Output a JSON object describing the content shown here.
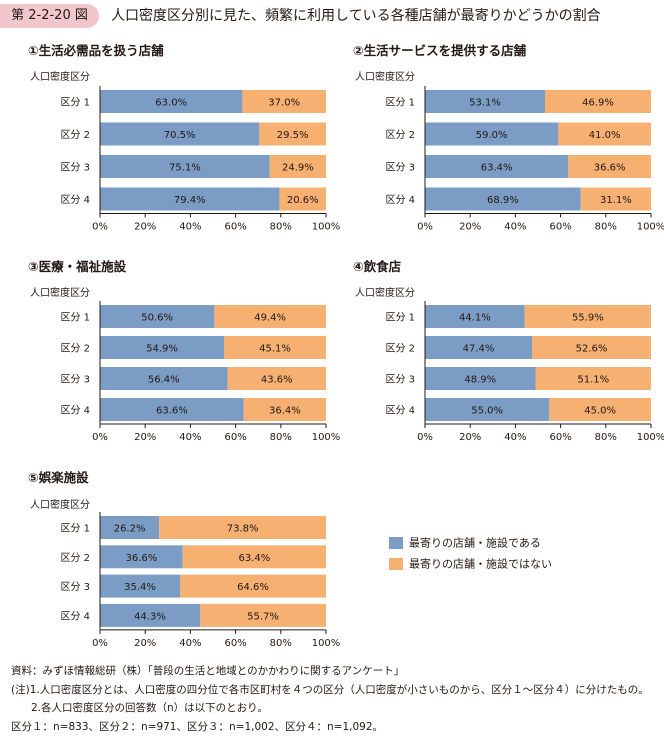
{
  "figure_number": "第 2-2-20 図",
  "title": "人口密度区分別に見た、頻繁に利用している各種店舗が最寄りかどうかの割合",
  "colors": {
    "near": "#7b9cc5",
    "not_near": "#f5b072",
    "axis": "#231815"
  },
  "legend": {
    "near": "最寄りの店舗・施設である",
    "not_near": "最寄りの店舗・施設ではない"
  },
  "chart_data": [
    {
      "type": "bar",
      "orientation": "horizontal",
      "stacked": true,
      "title": "①生活必需品を扱う店舗",
      "ylabel": "人口密度区分",
      "categories": [
        "区分 1",
        "区分 2",
        "区分 3",
        "区分 4"
      ],
      "series": [
        {
          "name": "最寄りの店舗・施設である",
          "values": [
            63.0,
            70.5,
            75.1,
            79.4
          ]
        },
        {
          "name": "最寄りの店舗・施設ではない",
          "values": [
            37.0,
            29.5,
            24.9,
            20.6
          ]
        }
      ],
      "xlim": [
        0,
        100
      ],
      "xticks": [
        "0%",
        "20%",
        "40%",
        "60%",
        "80%",
        "100%"
      ]
    },
    {
      "type": "bar",
      "orientation": "horizontal",
      "stacked": true,
      "title": "②生活サービスを提供する店舗",
      "ylabel": "人口密度区分",
      "categories": [
        "区分 1",
        "区分 2",
        "区分 3",
        "区分 4"
      ],
      "series": [
        {
          "name": "最寄りの店舗・施設である",
          "values": [
            53.1,
            59.0,
            63.4,
            68.9
          ]
        },
        {
          "name": "最寄りの店舗・施設ではない",
          "values": [
            46.9,
            41.0,
            36.6,
            31.1
          ]
        }
      ],
      "xlim": [
        0,
        100
      ],
      "xticks": [
        "0%",
        "20%",
        "40%",
        "60%",
        "80%",
        "100%"
      ]
    },
    {
      "type": "bar",
      "orientation": "horizontal",
      "stacked": true,
      "title": "③医療・福祉施設",
      "ylabel": "人口密度区分",
      "categories": [
        "区分 1",
        "区分 2",
        "区分 3",
        "区分 4"
      ],
      "series": [
        {
          "name": "最寄りの店舗・施設である",
          "values": [
            50.6,
            54.9,
            56.4,
            63.6
          ]
        },
        {
          "name": "最寄りの店舗・施設ではない",
          "values": [
            49.4,
            45.1,
            43.6,
            36.4
          ]
        }
      ],
      "xlim": [
        0,
        100
      ],
      "xticks": [
        "0%",
        "20%",
        "40%",
        "60%",
        "80%",
        "100%"
      ]
    },
    {
      "type": "bar",
      "orientation": "horizontal",
      "stacked": true,
      "title": "④飲食店",
      "ylabel": "人口密度区分",
      "categories": [
        "区分 1",
        "区分 2",
        "区分 3",
        "区分 4"
      ],
      "series": [
        {
          "name": "最寄りの店舗・施設である",
          "values": [
            44.1,
            47.4,
            48.9,
            55.0
          ]
        },
        {
          "name": "最寄りの店舗・施設ではない",
          "values": [
            55.9,
            52.6,
            51.1,
            45.0
          ]
        }
      ],
      "xlim": [
        0,
        100
      ],
      "xticks": [
        "0%",
        "20%",
        "40%",
        "60%",
        "80%",
        "100%"
      ]
    },
    {
      "type": "bar",
      "orientation": "horizontal",
      "stacked": true,
      "title": "⑤娯楽施設",
      "ylabel": "人口密度区分",
      "categories": [
        "区分 1",
        "区分 2",
        "区分 3",
        "区分 4"
      ],
      "series": [
        {
          "name": "最寄りの店舗・施設である",
          "values": [
            26.2,
            36.6,
            35.4,
            44.3
          ]
        },
        {
          "name": "最寄りの店舗・施設ではない",
          "values": [
            73.8,
            63.4,
            64.6,
            55.7
          ]
        }
      ],
      "xlim": [
        0,
        100
      ],
      "xticks": [
        "0%",
        "20%",
        "40%",
        "60%",
        "80%",
        "100%"
      ]
    }
  ],
  "notes": [
    "資料：みずほ情報総研（株）「普段の生活と地域とのかかわりに関するアンケート」",
    "(注)1.人口密度区分とは、人口密度の四分位で各市区町村を４つの区分（人口密度が小さいものから、区分１～区分４）に分けたもの。",
    "2.各人口密度区分の回答数（n）は以下のとおり。",
    "区分１：n=833、区分２：n=971、区分３：n=1,002、区分４：n=1,092。"
  ]
}
